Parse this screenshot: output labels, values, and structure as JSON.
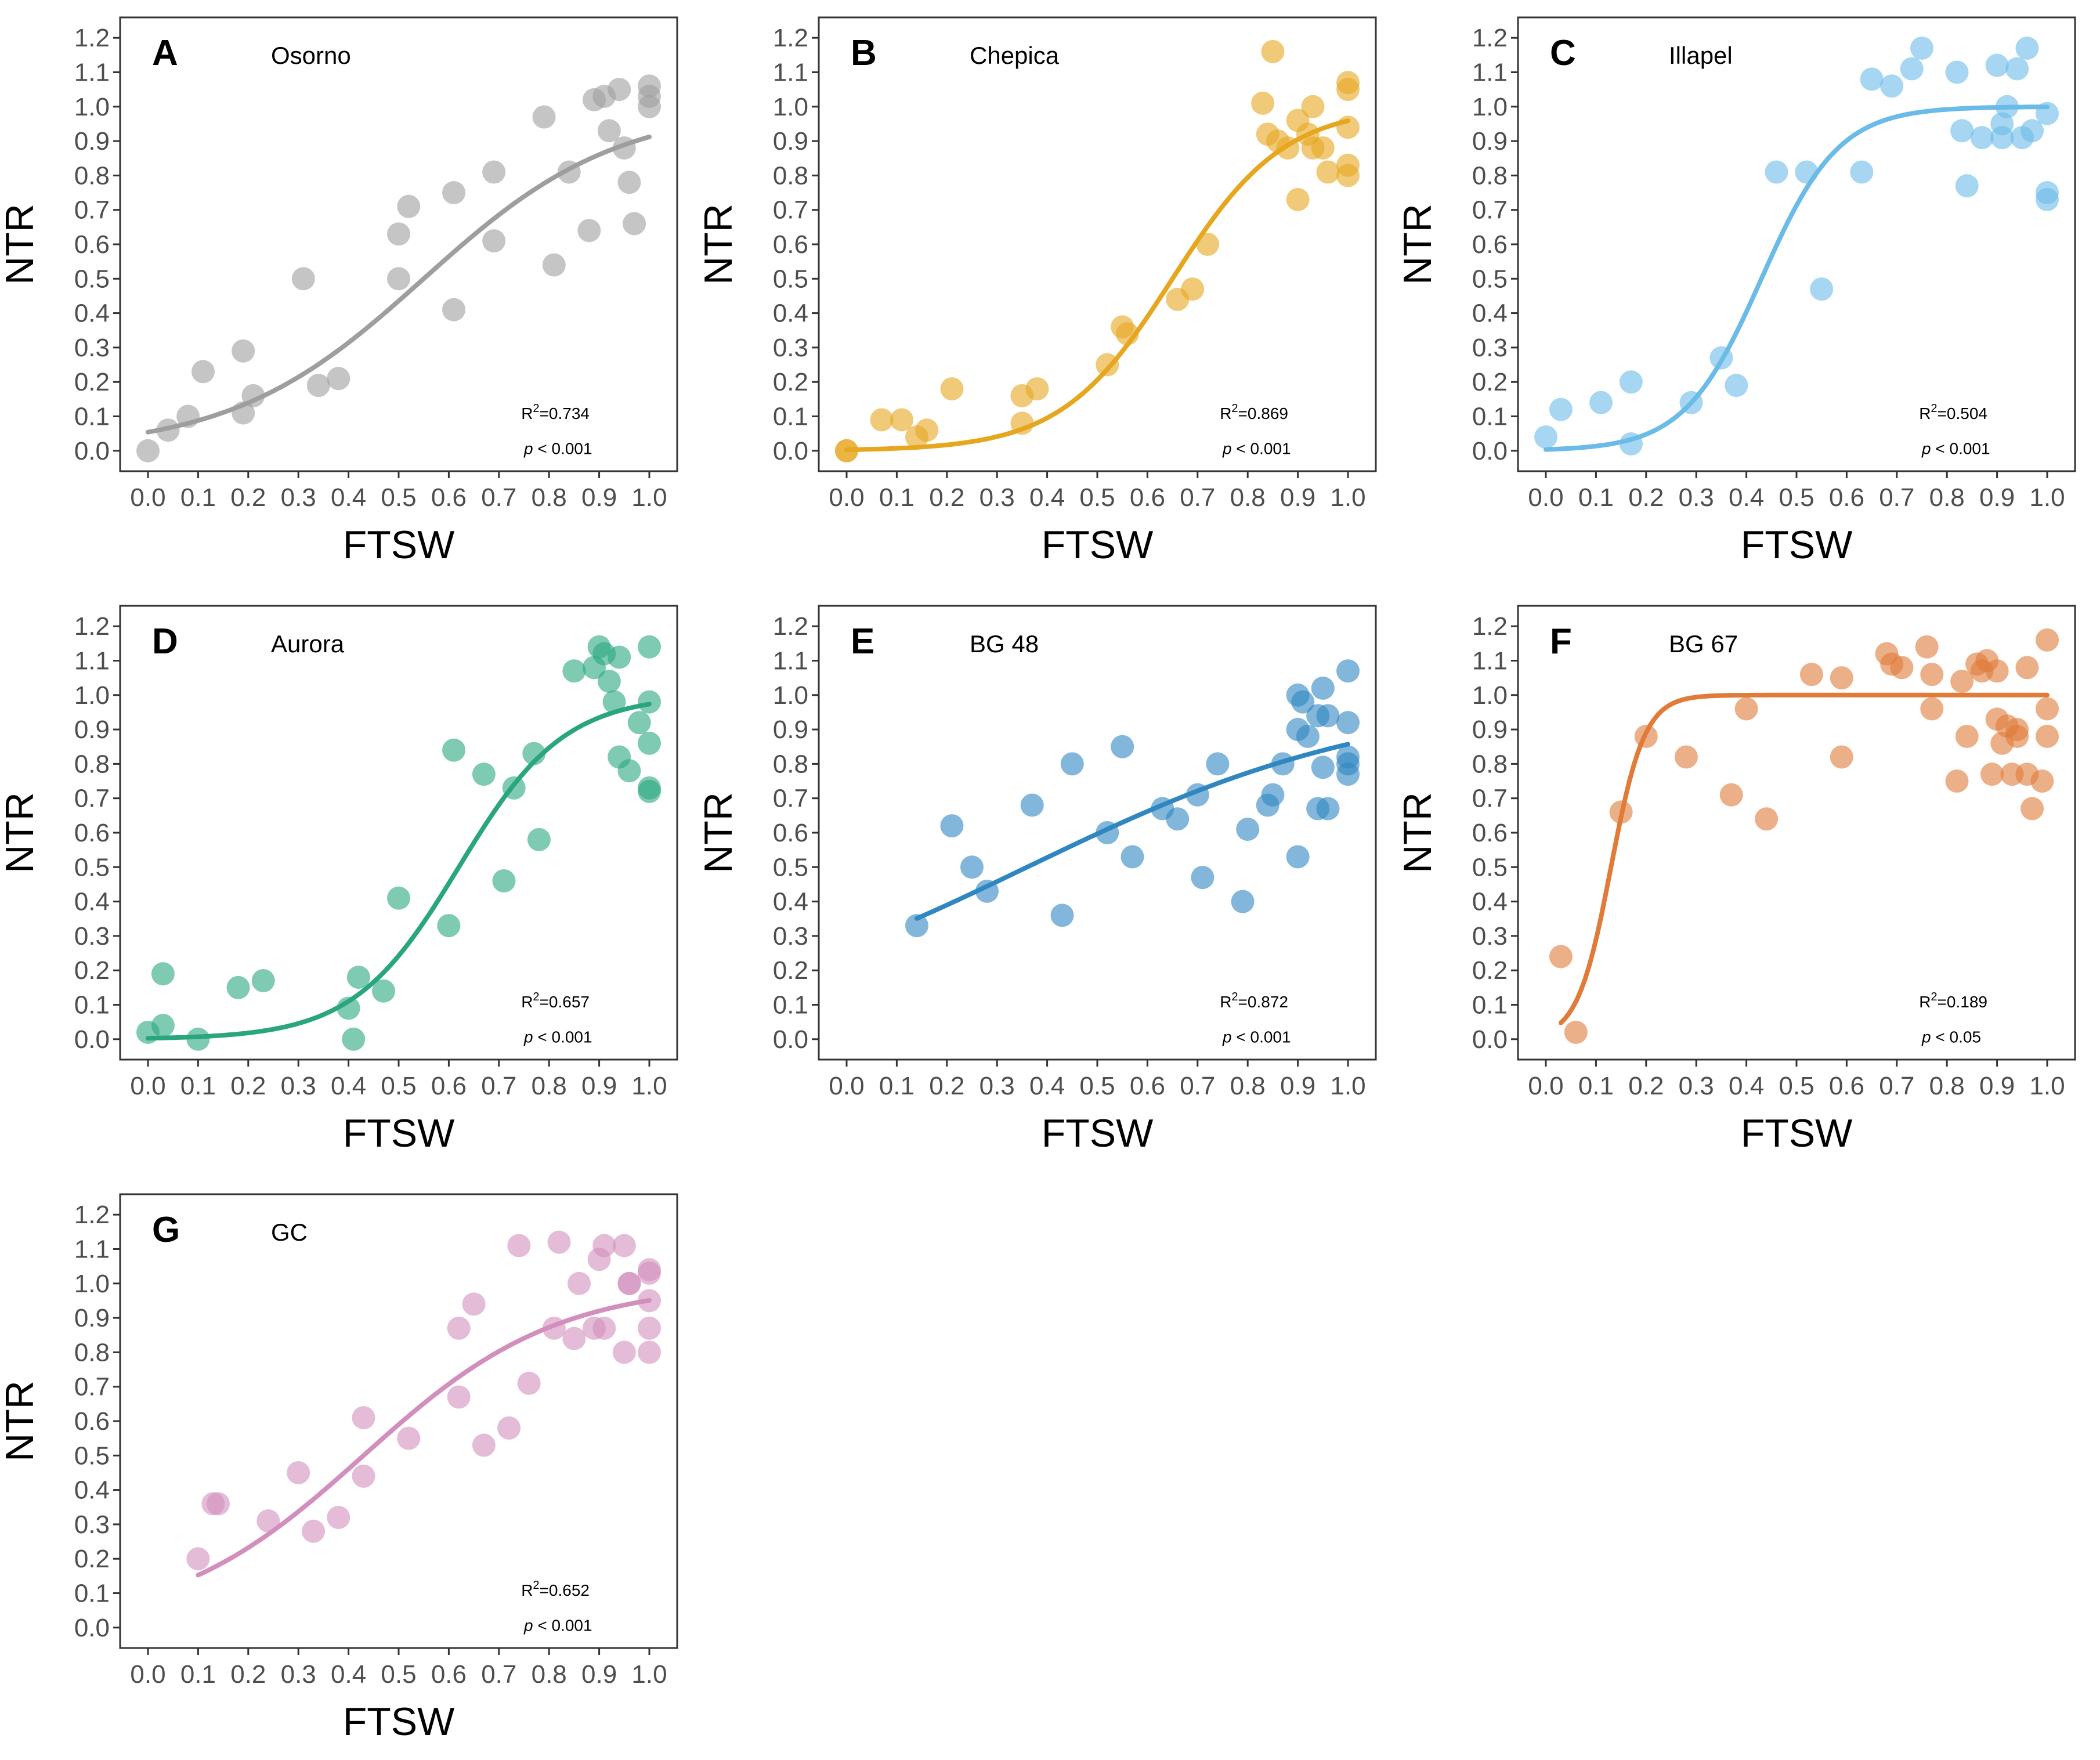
{
  "chart_data": [
    {
      "type": "scatter",
      "panel": "A",
      "title": "Osorno",
      "color": "#9e9e9e",
      "xlabel": "FTSW",
      "ylabel": "NTR",
      "xlim": [
        0,
        1
      ],
      "ylim": [
        0,
        1.2
      ],
      "x_ticks": [
        "0.0",
        "0.1",
        "0.2",
        "0.3",
        "0.4",
        "0.5",
        "0.6",
        "0.7",
        "0.8",
        "0.9",
        "1.0"
      ],
      "y_ticks": [
        "0.0",
        "0.1",
        "0.2",
        "0.3",
        "0.4",
        "0.5",
        "0.6",
        "0.7",
        "0.8",
        "0.9",
        "1.0",
        "1.1",
        "1.2"
      ],
      "r2": "0.734",
      "p_text": "< 0.001",
      "fit": {
        "L": 1.0,
        "k": 5.2,
        "x0": 0.55,
        "x_min": 0.0,
        "x_max": 1.0
      },
      "points": [
        [
          0.0,
          0.0
        ],
        [
          0.04,
          0.06
        ],
        [
          0.08,
          0.1
        ],
        [
          0.11,
          0.23
        ],
        [
          0.19,
          0.29
        ],
        [
          0.19,
          0.11
        ],
        [
          0.21,
          0.16
        ],
        [
          0.31,
          0.5
        ],
        [
          0.34,
          0.19
        ],
        [
          0.38,
          0.21
        ],
        [
          0.5,
          0.5
        ],
        [
          0.5,
          0.63
        ],
        [
          0.52,
          0.71
        ],
        [
          0.61,
          0.41
        ],
        [
          0.61,
          0.75
        ],
        [
          0.69,
          0.81
        ],
        [
          0.69,
          0.61
        ],
        [
          0.79,
          0.97
        ],
        [
          0.81,
          0.54
        ],
        [
          0.84,
          0.81
        ],
        [
          0.88,
          0.64
        ],
        [
          0.89,
          1.02
        ],
        [
          0.91,
          1.03
        ],
        [
          0.92,
          0.93
        ],
        [
          0.94,
          1.05
        ],
        [
          0.95,
          0.88
        ],
        [
          0.96,
          0.78
        ],
        [
          0.97,
          0.66
        ],
        [
          1.0,
          1.06
        ],
        [
          1.0,
          1.03
        ],
        [
          1.0,
          1.0
        ]
      ]
    },
    {
      "type": "scatter",
      "panel": "B",
      "title": "Chepica",
      "color": "#e6a61e",
      "xlabel": "FTSW",
      "ylabel": "NTR",
      "xlim": [
        0,
        1
      ],
      "ylim": [
        0,
        1.2
      ],
      "x_ticks": [
        "0.0",
        "0.1",
        "0.2",
        "0.3",
        "0.4",
        "0.5",
        "0.6",
        "0.7",
        "0.8",
        "0.9",
        "1.0"
      ],
      "y_ticks": [
        "0.0",
        "0.1",
        "0.2",
        "0.3",
        "0.4",
        "0.5",
        "0.6",
        "0.7",
        "0.8",
        "0.9",
        "1.0",
        "1.1",
        "1.2"
      ],
      "r2": "0.869",
      "p_text": "< 0.001",
      "fit": {
        "L": 1.0,
        "k": 9.0,
        "x0": 0.65,
        "x_min": 0.0,
        "x_max": 1.0
      },
      "points": [
        [
          0.0,
          0.0
        ],
        [
          0.0,
          0.0
        ],
        [
          0.07,
          0.09
        ],
        [
          0.11,
          0.09
        ],
        [
          0.14,
          0.04
        ],
        [
          0.16,
          0.06
        ],
        [
          0.21,
          0.18
        ],
        [
          0.35,
          0.16
        ],
        [
          0.35,
          0.08
        ],
        [
          0.38,
          0.18
        ],
        [
          0.52,
          0.25
        ],
        [
          0.55,
          0.36
        ],
        [
          0.56,
          0.34
        ],
        [
          0.66,
          0.44
        ],
        [
          0.69,
          0.47
        ],
        [
          0.72,
          0.6
        ],
        [
          0.83,
          1.01
        ],
        [
          0.84,
          0.92
        ],
        [
          0.85,
          1.16
        ],
        [
          0.86,
          0.9
        ],
        [
          0.88,
          0.88
        ],
        [
          0.9,
          0.73
        ],
        [
          0.9,
          0.96
        ],
        [
          0.92,
          0.92
        ],
        [
          0.93,
          1.0
        ],
        [
          0.93,
          0.88
        ],
        [
          0.95,
          0.88
        ],
        [
          0.96,
          0.81
        ],
        [
          1.0,
          1.07
        ],
        [
          1.0,
          1.05
        ],
        [
          1.0,
          0.94
        ],
        [
          1.0,
          0.83
        ],
        [
          1.0,
          0.8
        ]
      ]
    },
    {
      "type": "scatter",
      "panel": "C",
      "title": "Illapel",
      "color": "#6bbbe8",
      "xlabel": "FTSW",
      "ylabel": "NTR",
      "xlim": [
        0,
        1
      ],
      "ylim": [
        0,
        1.2
      ],
      "x_ticks": [
        "0.0",
        "0.1",
        "0.2",
        "0.3",
        "0.4",
        "0.5",
        "0.6",
        "0.7",
        "0.8",
        "0.9",
        "1.0"
      ],
      "y_ticks": [
        "0.0",
        "0.1",
        "0.2",
        "0.3",
        "0.4",
        "0.5",
        "0.6",
        "0.7",
        "0.8",
        "0.9",
        "1.0",
        "1.1",
        "1.2"
      ],
      "r2": "0.504",
      "p_text": "< 0.001",
      "fit": {
        "L": 1.0,
        "k": 13.0,
        "x0": 0.43,
        "x_min": 0.0,
        "x_max": 1.0
      },
      "points": [
        [
          0.0,
          0.04
        ],
        [
          0.03,
          0.12
        ],
        [
          0.11,
          0.14
        ],
        [
          0.17,
          0.02
        ],
        [
          0.17,
          0.2
        ],
        [
          0.29,
          0.14
        ],
        [
          0.35,
          0.27
        ],
        [
          0.38,
          0.19
        ],
        [
          0.46,
          0.81
        ],
        [
          0.52,
          0.81
        ],
        [
          0.55,
          0.47
        ],
        [
          0.63,
          0.81
        ],
        [
          0.65,
          1.08
        ],
        [
          0.69,
          1.06
        ],
        [
          0.73,
          1.11
        ],
        [
          0.75,
          1.17
        ],
        [
          0.82,
          1.1
        ],
        [
          0.83,
          0.93
        ],
        [
          0.84,
          0.77
        ],
        [
          0.87,
          0.91
        ],
        [
          0.9,
          1.12
        ],
        [
          0.91,
          0.95
        ],
        [
          0.91,
          0.91
        ],
        [
          0.92,
          1.0
        ],
        [
          0.94,
          1.11
        ],
        [
          0.95,
          0.91
        ],
        [
          0.96,
          1.17
        ],
        [
          0.97,
          0.93
        ],
        [
          1.0,
          0.98
        ],
        [
          1.0,
          0.75
        ],
        [
          1.0,
          0.73
        ]
      ]
    },
    {
      "type": "scatter",
      "panel": "D",
      "title": "Aurora",
      "color": "#2aa67f",
      "xlabel": "FTSW",
      "ylabel": "NTR",
      "xlim": [
        0,
        1
      ],
      "ylim": [
        0,
        1.2
      ],
      "x_ticks": [
        "0.0",
        "0.1",
        "0.2",
        "0.3",
        "0.4",
        "0.5",
        "0.6",
        "0.7",
        "0.8",
        "0.9",
        "1.0"
      ],
      "y_ticks": [
        "0.0",
        "0.1",
        "0.2",
        "0.3",
        "0.4",
        "0.5",
        "0.6",
        "0.7",
        "0.8",
        "0.9",
        "1.0",
        "1.1",
        "1.2"
      ],
      "r2": "0.657",
      "p_text": "< 0.001",
      "fit": {
        "L": 1.0,
        "k": 9.5,
        "x0": 0.62,
        "x_min": 0.0,
        "x_max": 1.0
      },
      "points": [
        [
          0.0,
          0.02
        ],
        [
          0.03,
          0.19
        ],
        [
          0.03,
          0.04
        ],
        [
          0.1,
          0.0
        ],
        [
          0.18,
          0.15
        ],
        [
          0.23,
          0.17
        ],
        [
          0.4,
          0.09
        ],
        [
          0.41,
          0.0
        ],
        [
          0.42,
          0.18
        ],
        [
          0.47,
          0.14
        ],
        [
          0.5,
          0.41
        ],
        [
          0.6,
          0.33
        ],
        [
          0.61,
          0.84
        ],
        [
          0.67,
          0.77
        ],
        [
          0.71,
          0.46
        ],
        [
          0.73,
          0.73
        ],
        [
          0.77,
          0.83
        ],
        [
          0.78,
          0.58
        ],
        [
          0.85,
          1.07
        ],
        [
          0.89,
          1.08
        ],
        [
          0.9,
          1.14
        ],
        [
          0.91,
          1.12
        ],
        [
          0.92,
          1.04
        ],
        [
          0.93,
          0.98
        ],
        [
          0.94,
          0.82
        ],
        [
          0.94,
          1.11
        ],
        [
          0.96,
          0.78
        ],
        [
          0.98,
          0.92
        ],
        [
          1.0,
          1.14
        ],
        [
          1.0,
          0.98
        ],
        [
          1.0,
          0.86
        ],
        [
          1.0,
          0.73
        ],
        [
          1.0,
          0.72
        ]
      ]
    },
    {
      "type": "scatter",
      "panel": "E",
      "title": "BG 48",
      "color": "#2f86c1",
      "xlabel": "FTSW",
      "ylabel": "NTR",
      "xlim": [
        0,
        1
      ],
      "ylim": [
        0,
        1.2
      ],
      "x_ticks": [
        "0.0",
        "0.1",
        "0.2",
        "0.3",
        "0.4",
        "0.5",
        "0.6",
        "0.7",
        "0.8",
        "0.9",
        "1.0"
      ],
      "y_ticks": [
        "0.0",
        "0.1",
        "0.2",
        "0.3",
        "0.4",
        "0.5",
        "0.6",
        "0.7",
        "0.8",
        "0.9",
        "1.0",
        "1.1",
        "1.2"
      ],
      "r2": "0.872",
      "p_text": "< 0.001",
      "fit": {
        "L": 1.0,
        "k": 2.8,
        "x0": 0.36,
        "x_min": 0.14,
        "x_max": 1.0
      },
      "points": [
        [
          0.14,
          0.33
        ],
        [
          0.21,
          0.62
        ],
        [
          0.25,
          0.5
        ],
        [
          0.28,
          0.43
        ],
        [
          0.37,
          0.68
        ],
        [
          0.43,
          0.36
        ],
        [
          0.45,
          0.8
        ],
        [
          0.52,
          0.6
        ],
        [
          0.55,
          0.85
        ],
        [
          0.57,
          0.53
        ],
        [
          0.63,
          0.67
        ],
        [
          0.66,
          0.64
        ],
        [
          0.7,
          0.71
        ],
        [
          0.71,
          0.47
        ],
        [
          0.74,
          0.8
        ],
        [
          0.79,
          0.4
        ],
        [
          0.8,
          0.61
        ],
        [
          0.84,
          0.68
        ],
        [
          0.85,
          0.71
        ],
        [
          0.87,
          0.8
        ],
        [
          0.9,
          1.0
        ],
        [
          0.9,
          0.9
        ],
        [
          0.9,
          0.53
        ],
        [
          0.91,
          0.98
        ],
        [
          0.92,
          0.88
        ],
        [
          0.94,
          0.94
        ],
        [
          0.95,
          1.02
        ],
        [
          0.95,
          0.79
        ],
        [
          0.96,
          0.67
        ],
        [
          0.96,
          0.94
        ],
        [
          0.94,
          0.67
        ],
        [
          1.0,
          1.07
        ],
        [
          1.0,
          0.92
        ],
        [
          1.0,
          0.82
        ],
        [
          1.0,
          0.77
        ],
        [
          1.0,
          0.8
        ]
      ]
    },
    {
      "type": "scatter",
      "panel": "F",
      "title": "BG 67",
      "color": "#e07b39",
      "xlabel": "FTSW",
      "ylabel": "NTR",
      "xlim": [
        0,
        1
      ],
      "ylim": [
        0,
        1.2
      ],
      "x_ticks": [
        "0.0",
        "0.1",
        "0.2",
        "0.3",
        "0.4",
        "0.5",
        "0.6",
        "0.7",
        "0.8",
        "0.9",
        "1.0"
      ],
      "y_ticks": [
        "0.0",
        "0.1",
        "0.2",
        "0.3",
        "0.4",
        "0.5",
        "0.6",
        "0.7",
        "0.8",
        "0.9",
        "1.0",
        "1.1",
        "1.2"
      ],
      "r2": "0.189",
      "p_text": "< 0.05",
      "fit": {
        "L": 1.0,
        "k": 30.0,
        "x0": 0.13,
        "x_min": 0.03,
        "x_max": 1.0
      },
      "points": [
        [
          0.03,
          0.24
        ],
        [
          0.06,
          0.02
        ],
        [
          0.15,
          0.66
        ],
        [
          0.2,
          0.88
        ],
        [
          0.28,
          0.82
        ],
        [
          0.37,
          0.71
        ],
        [
          0.4,
          0.96
        ],
        [
          0.44,
          0.64
        ],
        [
          0.53,
          1.06
        ],
        [
          0.59,
          0.82
        ],
        [
          0.59,
          1.05
        ],
        [
          0.68,
          1.12
        ],
        [
          0.69,
          1.09
        ],
        [
          0.71,
          1.08
        ],
        [
          0.76,
          1.14
        ],
        [
          0.77,
          1.06
        ],
        [
          0.77,
          0.96
        ],
        [
          0.82,
          0.75
        ],
        [
          0.83,
          1.04
        ],
        [
          0.84,
          0.88
        ],
        [
          0.86,
          1.09
        ],
        [
          0.87,
          1.07
        ],
        [
          0.88,
          1.1
        ],
        [
          0.89,
          0.77
        ],
        [
          0.9,
          0.93
        ],
        [
          0.9,
          1.07
        ],
        [
          0.91,
          0.86
        ],
        [
          0.92,
          0.91
        ],
        [
          0.93,
          0.77
        ],
        [
          0.94,
          0.9
        ],
        [
          0.94,
          0.88
        ],
        [
          0.96,
          0.77
        ],
        [
          0.96,
          1.08
        ],
        [
          0.97,
          0.67
        ],
        [
          0.99,
          0.75
        ],
        [
          1.0,
          1.16
        ],
        [
          1.0,
          0.96
        ],
        [
          1.0,
          0.88
        ]
      ]
    },
    {
      "type": "scatter",
      "panel": "G",
      "title": "GC",
      "color": "#d28fbd",
      "xlabel": "FTSW",
      "ylabel": "NTR",
      "xlim": [
        0,
        1
      ],
      "ylim": [
        0,
        1.2
      ],
      "x_ticks": [
        "0.0",
        "0.1",
        "0.2",
        "0.3",
        "0.4",
        "0.5",
        "0.6",
        "0.7",
        "0.8",
        "0.9",
        "1.0"
      ],
      "y_ticks": [
        "0.0",
        "0.1",
        "0.2",
        "0.3",
        "0.4",
        "0.5",
        "0.6",
        "0.7",
        "0.8",
        "0.9",
        "1.0",
        "1.1",
        "1.2"
      ],
      "r2": "0.652",
      "p_text": "< 0.001",
      "fit": {
        "L": 1.0,
        "k": 5.2,
        "x0": 0.43,
        "x_min": 0.1,
        "x_max": 1.0
      },
      "points": [
        [
          0.1,
          0.2
        ],
        [
          0.13,
          0.36
        ],
        [
          0.14,
          0.36
        ],
        [
          0.24,
          0.31
        ],
        [
          0.3,
          0.45
        ],
        [
          0.33,
          0.28
        ],
        [
          0.38,
          0.32
        ],
        [
          0.43,
          0.61
        ],
        [
          0.43,
          0.44
        ],
        [
          0.52,
          0.55
        ],
        [
          0.62,
          0.67
        ],
        [
          0.62,
          0.87
        ],
        [
          0.65,
          0.94
        ],
        [
          0.67,
          0.53
        ],
        [
          0.72,
          0.58
        ],
        [
          0.74,
          1.11
        ],
        [
          0.76,
          0.71
        ],
        [
          0.81,
          0.87
        ],
        [
          0.82,
          1.12
        ],
        [
          0.85,
          0.84
        ],
        [
          0.86,
          1.0
        ],
        [
          0.89,
          0.87
        ],
        [
          0.9,
          1.07
        ],
        [
          0.91,
          0.87
        ],
        [
          0.91,
          1.11
        ],
        [
          0.95,
          0.8
        ],
        [
          0.95,
          1.11
        ],
        [
          0.96,
          1.0
        ],
        [
          0.96,
          1.0
        ],
        [
          1.0,
          1.04
        ],
        [
          1.0,
          1.03
        ],
        [
          1.0,
          0.95
        ],
        [
          1.0,
          0.87
        ],
        [
          1.0,
          0.8
        ]
      ]
    }
  ]
}
